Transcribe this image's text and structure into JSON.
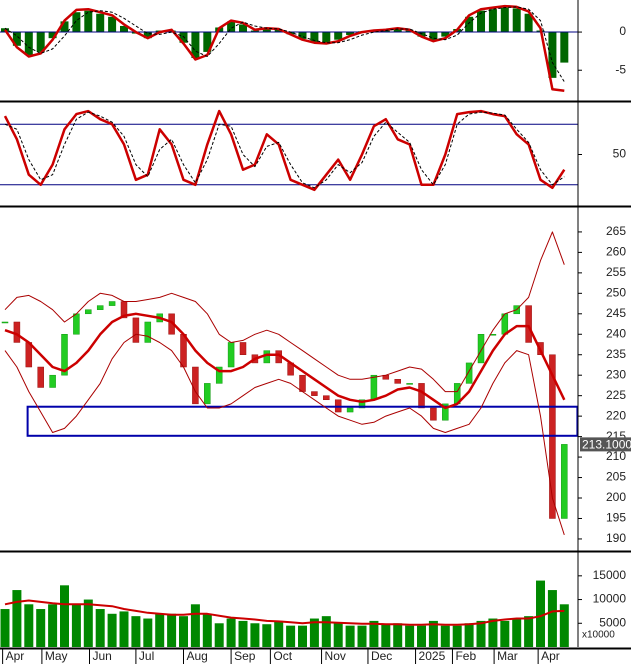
{
  "chart_data": [
    {
      "type": "macd",
      "ylim": [
        -8.9,
        4.2
      ],
      "yticks": [
        0,
        -5
      ],
      "histogram": {
        "color": "#006600",
        "values": [
          0.5,
          -1.8,
          -3,
          -2.6,
          -0.8,
          1.4,
          2.6,
          2.8,
          2.4,
          2,
          0.8,
          -0.2,
          -0.8,
          0.2,
          0.2,
          -1.4,
          -3.4,
          -2.6,
          0.6,
          1.4,
          1,
          0.2,
          0.4,
          0.3,
          -0.3,
          -0.9,
          -1.3,
          -1.4,
          -1,
          -0.4,
          0.1,
          0.2,
          0.3,
          0.4,
          0.2,
          -0.6,
          -1.1,
          -0.6,
          0.4,
          2,
          2.8,
          3,
          3.2,
          3.1,
          2.4,
          0.2,
          -6,
          -4
        ]
      },
      "lines": [
        {
          "color": "#cc0000",
          "width": 2.5,
          "dash": false,
          "values": [
            0.3,
            -2,
            -3.2,
            -2.8,
            -1,
            1.5,
            2.9,
            3,
            2.6,
            2.2,
            1,
            0,
            -0.8,
            0,
            0.3,
            -1.5,
            -3.6,
            -3,
            0.5,
            1.5,
            1.2,
            0.3,
            0.5,
            0.4,
            -0.3,
            -1,
            -1.4,
            -1.5,
            -1.2,
            -0.5,
            0,
            0.2,
            0.3,
            0.5,
            0.3,
            -0.6,
            -1.2,
            -0.8,
            0.3,
            2.2,
            3,
            3.2,
            3.4,
            3.3,
            2.7,
            0.5,
            -7.5,
            -7.7
          ]
        },
        {
          "color": "#000000",
          "width": 1,
          "dash": true,
          "values": [
            0.5,
            -0.5,
            -2,
            -2.8,
            -2.2,
            -0.5,
            1.5,
            2.6,
            2.8,
            2.6,
            1.8,
            0.8,
            -0.2,
            -0.3,
            0,
            -0.6,
            -2.5,
            -3.2,
            -1.5,
            0.5,
            1.3,
            0.8,
            0.5,
            0.4,
            0,
            -0.6,
            -1.1,
            -1.4,
            -1.4,
            -1,
            -0.4,
            0,
            0.2,
            0.4,
            0.4,
            -0.2,
            -0.8,
            -1,
            -0.4,
            1.2,
            2.5,
            3,
            3.2,
            3.3,
            3,
            1.5,
            -4,
            -6.5
          ]
        }
      ]
    },
    {
      "type": "stochastic",
      "ylim": [
        0,
        100
      ],
      "yticks": [
        50
      ],
      "levels": [
        20,
        80
      ],
      "level_color": "#000080",
      "lines": [
        {
          "color": "#cc0000",
          "width": 2.5,
          "dash": false,
          "values": [
            88,
            65,
            30,
            20,
            40,
            75,
            90,
            93,
            85,
            80,
            60,
            25,
            30,
            75,
            60,
            25,
            20,
            60,
            93,
            70,
            35,
            40,
            70,
            60,
            25,
            20,
            15,
            30,
            45,
            25,
            50,
            78,
            85,
            65,
            60,
            20,
            20,
            50,
            90,
            92,
            93,
            90,
            88,
            70,
            60,
            25,
            17,
            35
          ]
        },
        {
          "color": "#000000",
          "width": 1,
          "dash": true,
          "values": [
            80,
            75,
            45,
            25,
            30,
            60,
            85,
            92,
            88,
            82,
            68,
            40,
            28,
            55,
            65,
            40,
            22,
            45,
            80,
            78,
            50,
            38,
            58,
            62,
            40,
            22,
            17,
            25,
            40,
            32,
            42,
            68,
            82,
            72,
            62,
            35,
            20,
            40,
            80,
            90,
            92,
            91,
            89,
            75,
            62,
            35,
            20,
            28
          ]
        }
      ]
    },
    {
      "type": "candlestick",
      "ylim": [
        187.3,
        270.6
      ],
      "yticks": [
        190,
        195,
        200,
        205,
        210,
        215,
        220,
        225,
        230,
        235,
        240,
        245,
        250,
        255,
        260,
        265
      ],
      "color_up": "#22cc22",
      "color_down": "#cc2222",
      "close": [
        243,
        238,
        232,
        227,
        230,
        240,
        245,
        246,
        247,
        248,
        244,
        238,
        243,
        245,
        240,
        232,
        223,
        228,
        232,
        238,
        235,
        233,
        236,
        233,
        230,
        226,
        225,
        224,
        221,
        222,
        224,
        230,
        229,
        228,
        228,
        222,
        219,
        223,
        228,
        233,
        240,
        240,
        245,
        247,
        238,
        235,
        195,
        213.1
      ],
      "last_label": "213.1000",
      "zone": {
        "color": "#0000aa",
        "low": 215.2,
        "high": 222.3,
        "from": 1.9,
        "to": 48.1
      },
      "lines": [
        {
          "color": "#cc0000",
          "width": 2.5,
          "dash": false,
          "values": [
            241,
            240,
            238,
            235,
            232,
            231,
            233,
            236,
            240,
            243,
            244.5,
            245,
            244.5,
            244,
            243,
            240,
            236,
            233,
            231,
            231,
            232,
            234,
            235,
            235,
            233,
            231,
            229,
            227,
            225,
            224,
            223.5,
            224,
            225,
            226.5,
            227,
            226,
            224,
            222,
            223,
            226,
            231,
            236,
            240,
            242,
            242,
            236,
            230,
            224
          ]
        },
        {
          "color": "#aa0000",
          "width": 1,
          "dash": false,
          "values": [
            246,
            249,
            249.5,
            248,
            246,
            243,
            245,
            248,
            250,
            249.5,
            248,
            248,
            248.5,
            249,
            250,
            249,
            248,
            245,
            240,
            238,
            238.5,
            240,
            241,
            240,
            238,
            236,
            234,
            232,
            230,
            229,
            229,
            229.5,
            230,
            231,
            232,
            231.5,
            229,
            226,
            226,
            231,
            236,
            241,
            245,
            246,
            249,
            258,
            265,
            257
          ]
        },
        {
          "color": "#aa0000",
          "width": 1,
          "dash": false,
          "values": [
            236,
            232,
            226,
            221,
            216,
            217,
            220,
            224,
            228,
            234,
            238,
            240,
            239.5,
            238,
            236,
            232,
            226,
            222,
            222,
            223,
            225,
            227,
            228,
            229,
            228,
            226,
            224,
            222,
            220,
            219,
            218,
            218.5,
            220,
            221,
            222,
            220,
            217,
            216,
            217,
            218,
            222,
            228,
            233,
            236,
            235,
            220,
            200,
            191
          ]
        }
      ]
    },
    {
      "type": "volume",
      "ylim": [
        0,
        19600
      ],
      "yticks": [
        5000,
        10000,
        15000
      ],
      "unit_label": "x10000",
      "color": "#008800",
      "values": [
        8000,
        12000,
        9000,
        8000,
        9000,
        13000,
        9000,
        10000,
        8000,
        7000,
        7500,
        6500,
        6000,
        7000,
        7000,
        6500,
        9000,
        7000,
        5000,
        6000,
        5500,
        5000,
        4800,
        5500,
        4500,
        4500,
        6000,
        6500,
        5000,
        4500,
        4500,
        5500,
        4800,
        5000,
        4500,
        4500,
        5500,
        4500,
        4500,
        5000,
        5500,
        6000,
        5500,
        6000,
        6500,
        14000,
        12000,
        9000
      ],
      "lines": [
        {
          "color": "#cc0000",
          "width": 2,
          "dash": false,
          "values": [
            9000,
            9500,
            9800,
            9500,
            9200,
            9000,
            9000,
            9000,
            8800,
            8600,
            8000,
            7600,
            7200,
            7000,
            6800,
            6800,
            7000,
            7000,
            6600,
            6200,
            6000,
            5800,
            5500,
            5400,
            5200,
            5000,
            5200,
            5200,
            5100,
            5000,
            4900,
            4900,
            4800,
            4800,
            4700,
            4700,
            4800,
            4700,
            4700,
            4800,
            5000,
            5500,
            5800,
            6000,
            6000,
            6500,
            7500,
            7600
          ]
        }
      ],
      "xlim": [
        -0.42,
        48.15
      ],
      "xticks": [
        {
          "value": -0.2,
          "label": "Apr"
        },
        {
          "value": 3.1,
          "label": "May"
        },
        {
          "value": 7.1,
          "label": "Jun"
        },
        {
          "value": 11,
          "label": "Jul"
        },
        {
          "value": 15,
          "label": "Aug"
        },
        {
          "value": 19,
          "label": "Sep"
        },
        {
          "value": 22.3,
          "label": "Oct"
        },
        {
          "value": 26.6,
          "label": "Nov"
        },
        {
          "value": 30.5,
          "label": "Dec"
        },
        {
          "value": 34.5,
          "label": "2025"
        },
        {
          "value": 37.6,
          "label": "Feb"
        },
        {
          "value": 41.1,
          "label": "Mar"
        },
        {
          "value": 44.8,
          "label": "Apr"
        }
      ]
    }
  ]
}
